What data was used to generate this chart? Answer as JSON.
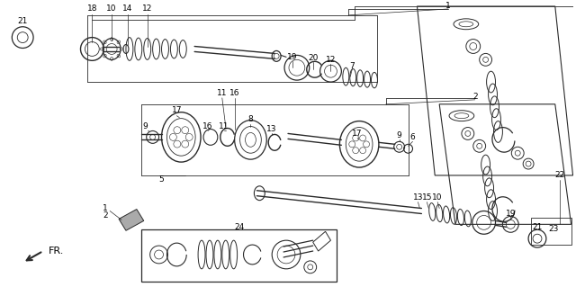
{
  "bg_color": "#ffffff",
  "line_color": "#2a2a2a",
  "text_color": "#000000",
  "fig_width": 6.4,
  "fig_height": 3.19,
  "dpi": 100
}
